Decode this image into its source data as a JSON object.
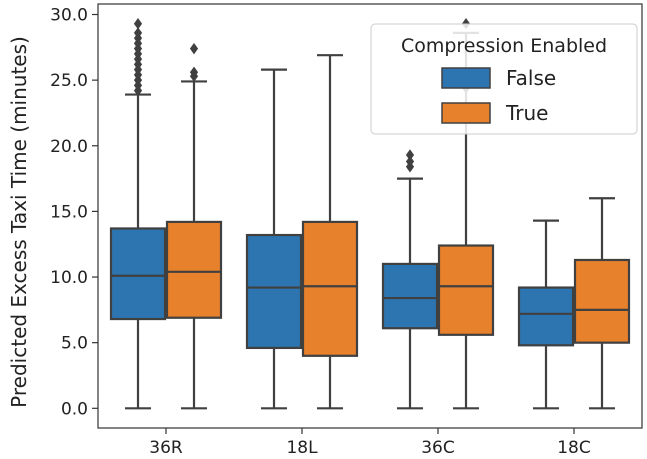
{
  "chart_data": {
    "type": "box",
    "ylabel": "Predicted Excess Taxi Time (minutes)",
    "xlabel": "",
    "ylim": [
      -1.5,
      30.8
    ],
    "yticks": [
      "0.0",
      "5.0",
      "10.0",
      "15.0",
      "20.0",
      "25.0",
      "30.0"
    ],
    "categories": [
      "36R",
      "18L",
      "36C",
      "18C"
    ],
    "legend": {
      "title": "Compression Enabled",
      "position": "upper right",
      "entries": [
        "False",
        "True"
      ]
    },
    "series": [
      {
        "name": "False",
        "color": "#2c75b0",
        "boxes": [
          {
            "min": 0.0,
            "q1": 6.8,
            "median": 10.1,
            "q3": 13.7,
            "max": 23.9,
            "outliers": [
              24.2,
              24.6,
              25.0,
              25.4,
              25.8,
              26.2,
              26.6,
              27.0,
              27.4,
              27.8,
              28.2,
              28.6,
              29.3
            ]
          },
          {
            "min": 0.0,
            "q1": 4.6,
            "median": 9.2,
            "q3": 13.2,
            "max": 25.8,
            "outliers": []
          },
          {
            "min": 0.0,
            "q1": 6.1,
            "median": 8.4,
            "q3": 11.0,
            "max": 17.5,
            "outliers": [
              18.4,
              18.8,
              19.3
            ]
          },
          {
            "min": 0.0,
            "q1": 4.8,
            "median": 7.2,
            "q3": 9.2,
            "max": 14.3,
            "outliers": []
          }
        ]
      },
      {
        "name": "True",
        "color": "#e8812c",
        "boxes": [
          {
            "min": 0.0,
            "q1": 6.9,
            "median": 10.4,
            "q3": 14.2,
            "max": 24.9,
            "outliers": [
              25.3,
              25.6,
              27.4
            ]
          },
          {
            "min": 0.0,
            "q1": 4.0,
            "median": 9.3,
            "q3": 14.2,
            "max": 26.9,
            "outliers": []
          },
          {
            "min": 0.0,
            "q1": 5.6,
            "median": 9.3,
            "q3": 12.4,
            "max": 28.6,
            "outliers": [
              24.4,
              24.9,
              29.3
            ]
          },
          {
            "min": 0.0,
            "q1": 5.0,
            "median": 7.5,
            "q3": 11.3,
            "max": 16.0,
            "outliers": []
          }
        ]
      }
    ],
    "grid": false
  }
}
